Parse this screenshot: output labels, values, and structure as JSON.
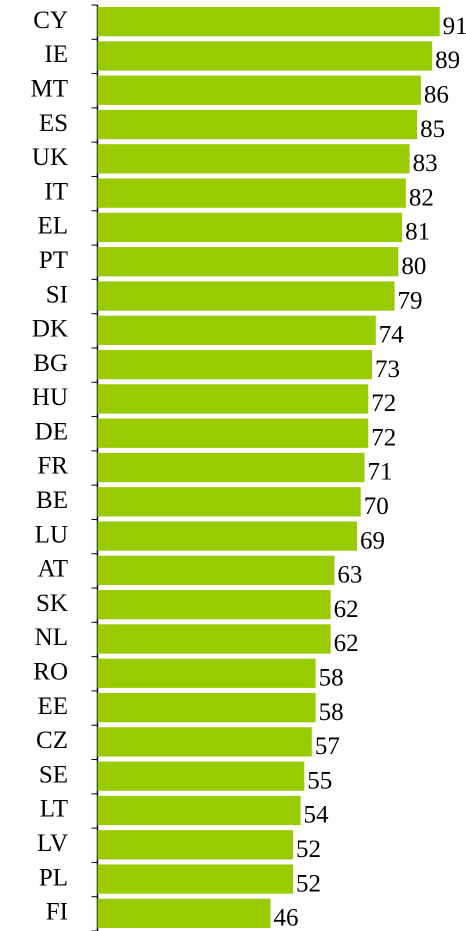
{
  "chart_data": {
    "type": "hbar",
    "categories": [
      "CY",
      "IE",
      "MT",
      "ES",
      "UK",
      "IT",
      "EL",
      "PT",
      "SI",
      "DK",
      "BG",
      "HU",
      "DE",
      "FR",
      "BE",
      "LU",
      "AT",
      "SK",
      "NL",
      "RO",
      "EE",
      "CZ",
      "SE",
      "LT",
      "LV",
      "PL",
      "FI"
    ],
    "values": [
      91,
      89,
      86,
      85,
      83,
      82,
      81,
      80,
      79,
      74,
      73,
      72,
      72,
      71,
      70,
      69,
      63,
      62,
      62,
      58,
      58,
      57,
      55,
      54,
      52,
      52,
      46
    ],
    "color": "#99cc00",
    "xlim": [
      0,
      98
    ]
  }
}
